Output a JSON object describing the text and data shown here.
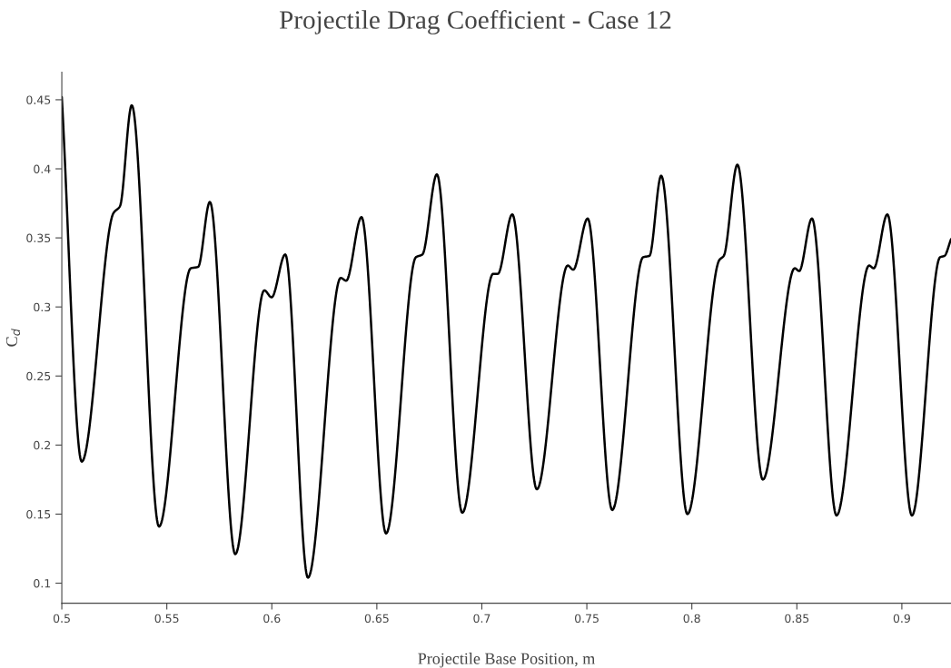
{
  "chart_data": {
    "type": "line",
    "title": "Projectile Drag Coefficient - Case 12",
    "xlabel": "Projectile Base Position, m",
    "ylabel": "C$_{d}$",
    "x": [
      0.5,
      0.5095,
      0.5246,
      0.5277,
      0.5333,
      0.5463,
      0.5614,
      0.5649,
      0.5705,
      0.5826,
      0.5964,
      0.5999,
      0.6064,
      0.6172,
      0.6328,
      0.6354,
      0.6427,
      0.6544,
      0.6686,
      0.6717,
      0.6786,
      0.6907,
      0.7054,
      0.7076,
      0.7145,
      0.7262,
      0.7409,
      0.7435,
      0.7504,
      0.7621,
      0.7768,
      0.7798,
      0.7854,
      0.7979,
      0.8131,
      0.8152,
      0.8217,
      0.8338,
      0.849,
      0.8511,
      0.8572,
      0.8689,
      0.8844,
      0.8866,
      0.8931,
      0.9048,
      0.9182,
      0.9203,
      0.9234
    ],
    "series": [
      {
        "color": "#000000",
        "values": [
          0.452,
          0.188,
          0.368,
          0.373,
          0.446,
          0.141,
          0.328,
          0.329,
          0.376,
          0.121,
          0.312,
          0.307,
          0.338,
          0.104,
          0.321,
          0.319,
          0.365,
          0.136,
          0.336,
          0.338,
          0.396,
          0.151,
          0.324,
          0.324,
          0.367,
          0.168,
          0.33,
          0.327,
          0.364,
          0.153,
          0.336,
          0.337,
          0.395,
          0.15,
          0.334,
          0.337,
          0.403,
          0.175,
          0.328,
          0.326,
          0.364,
          0.149,
          0.33,
          0.328,
          0.367,
          0.149,
          0.336,
          0.337,
          0.349
        ]
      }
    ],
    "xlim": [
      0.5,
      0.9234
    ],
    "ylim": [
      0.0855,
      0.47
    ],
    "xticks": [
      0.5,
      0.55,
      0.6,
      0.65,
      0.7,
      0.75,
      0.8,
      0.85,
      0.9
    ],
    "yticks": [
      0.1,
      0.15,
      0.2,
      0.25,
      0.3,
      0.35,
      0.4,
      0.45
    ],
    "grid": false,
    "legend": false,
    "marker": "none",
    "line_style": "solid"
  }
}
